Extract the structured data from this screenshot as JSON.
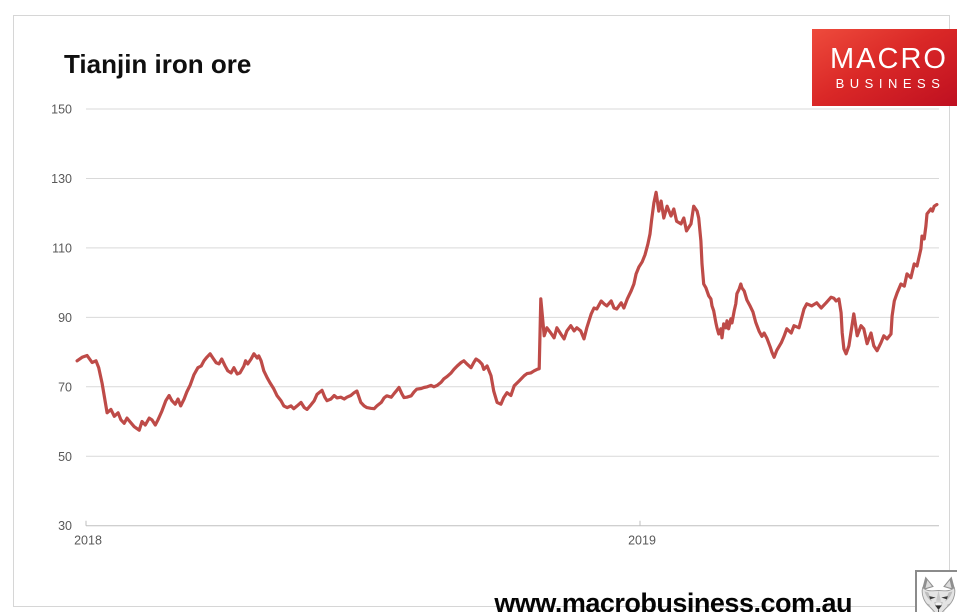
{
  "page": {
    "footer_url": "www.macrobusiness.com.au"
  },
  "logo": {
    "line1": "MACRO",
    "line2": "BUSINESS",
    "bg_top": "#ee4b3c",
    "bg_bottom": "#bd0e20",
    "text_color": "#ffffff"
  },
  "chart_data": {
    "type": "line",
    "title": "Tianjin iron ore",
    "xlabel": "",
    "ylabel": "",
    "grid": true,
    "legend": "none",
    "line_color": "#be4b48",
    "grid_color": "#d9d9d9",
    "axis_color": "#bfbfbf",
    "label_color": "#595959",
    "ylim": [
      30,
      150
    ],
    "y_ticks": [
      150,
      130,
      110,
      90,
      70,
      50,
      30
    ],
    "x_ticks": [
      {
        "label": "2018",
        "value": 2018
      },
      {
        "label": "2019",
        "value": 2019
      }
    ],
    "xlim": [
      2017.983,
      2019.54
    ],
    "points": [
      [
        2017.984,
        77.5
      ],
      [
        2017.993,
        78.5
      ],
      [
        2018.002,
        79
      ],
      [
        2018.011,
        77
      ],
      [
        2018.018,
        77.5
      ],
      [
        2018.023,
        75.5
      ],
      [
        2018.029,
        71
      ],
      [
        2018.038,
        62.5
      ],
      [
        2018.045,
        63.5
      ],
      [
        2018.051,
        61.5
      ],
      [
        2018.058,
        62.5
      ],
      [
        2018.063,
        60.5
      ],
      [
        2018.069,
        59.5
      ],
      [
        2018.074,
        61
      ],
      [
        2018.079,
        60
      ],
      [
        2018.087,
        58.5
      ],
      [
        2018.096,
        57.5
      ],
      [
        2018.101,
        60
      ],
      [
        2018.107,
        59
      ],
      [
        2018.114,
        61
      ],
      [
        2018.119,
        60.5
      ],
      [
        2018.125,
        59
      ],
      [
        2018.13,
        60.5
      ],
      [
        2018.137,
        63
      ],
      [
        2018.144,
        66
      ],
      [
        2018.15,
        67.5
      ],
      [
        2018.155,
        66
      ],
      [
        2018.161,
        65
      ],
      [
        2018.166,
        66.5
      ],
      [
        2018.171,
        64.5
      ],
      [
        2018.177,
        66.5
      ],
      [
        2018.182,
        68.5
      ],
      [
        2018.188,
        70.5
      ],
      [
        2018.195,
        73.5
      ],
      [
        2018.202,
        75.5
      ],
      [
        2018.208,
        76
      ],
      [
        2018.213,
        77.5
      ],
      [
        2018.218,
        78.5
      ],
      [
        2018.224,
        79.5
      ],
      [
        2018.229,
        78.3
      ],
      [
        2018.235,
        76.9
      ],
      [
        2018.24,
        76.6
      ],
      [
        2018.245,
        78
      ],
      [
        2018.251,
        76
      ],
      [
        2018.256,
        74.6
      ],
      [
        2018.262,
        74
      ],
      [
        2018.267,
        75.5
      ],
      [
        2018.273,
        73.7
      ],
      [
        2018.278,
        74
      ],
      [
        2018.285,
        76
      ],
      [
        2018.288,
        77.5
      ],
      [
        2018.292,
        76.6
      ],
      [
        2018.298,
        78
      ],
      [
        2018.303,
        79.5
      ],
      [
        2018.309,
        78.3
      ],
      [
        2018.312,
        78.9
      ],
      [
        2018.316,
        77.5
      ],
      [
        2018.321,
        74.6
      ],
      [
        2018.327,
        72.6
      ],
      [
        2018.332,
        71.2
      ],
      [
        2018.339,
        69.4
      ],
      [
        2018.345,
        67.4
      ],
      [
        2018.352,
        66
      ],
      [
        2018.357,
        64.5
      ],
      [
        2018.363,
        64
      ],
      [
        2018.37,
        64.5
      ],
      [
        2018.375,
        63.7
      ],
      [
        2018.381,
        64.5
      ],
      [
        2018.388,
        65.5
      ],
      [
        2018.394,
        64
      ],
      [
        2018.399,
        63.5
      ],
      [
        2018.406,
        64.8
      ],
      [
        2018.412,
        66
      ],
      [
        2018.417,
        67.8
      ],
      [
        2018.426,
        69
      ],
      [
        2018.431,
        67
      ],
      [
        2018.435,
        66
      ],
      [
        2018.442,
        66.5
      ],
      [
        2018.448,
        67.5
      ],
      [
        2018.453,
        66.8
      ],
      [
        2018.46,
        67
      ],
      [
        2018.466,
        66.5
      ],
      [
        2018.471,
        67
      ],
      [
        2018.478,
        67.5
      ],
      [
        2018.484,
        68.3
      ],
      [
        2018.489,
        68.8
      ],
      [
        2018.496,
        65.5
      ],
      [
        2018.502,
        64.5
      ],
      [
        2018.507,
        64
      ],
      [
        2018.514,
        63.8
      ],
      [
        2018.52,
        63.7
      ],
      [
        2018.525,
        64.5
      ],
      [
        2018.533,
        65.5
      ],
      [
        2018.538,
        66.8
      ],
      [
        2018.543,
        67.4
      ],
      [
        2018.551,
        67
      ],
      [
        2018.556,
        68
      ],
      [
        2018.561,
        69
      ],
      [
        2018.565,
        69.8
      ],
      [
        2018.57,
        68
      ],
      [
        2018.574,
        66.9
      ],
      [
        2018.579,
        67
      ],
      [
        2018.587,
        67.4
      ],
      [
        2018.592,
        68.5
      ],
      [
        2018.597,
        69.3
      ],
      [
        2018.605,
        69.5
      ],
      [
        2018.61,
        69.8
      ],
      [
        2018.616,
        70
      ],
      [
        2018.623,
        70.4
      ],
      [
        2018.628,
        70
      ],
      [
        2018.634,
        70.4
      ],
      [
        2018.641,
        71.3
      ],
      [
        2018.646,
        72.3
      ],
      [
        2018.652,
        73
      ],
      [
        2018.659,
        74
      ],
      [
        2018.664,
        75
      ],
      [
        2018.67,
        76
      ],
      [
        2018.677,
        77
      ],
      [
        2018.682,
        77.5
      ],
      [
        2018.688,
        76.5
      ],
      [
        2018.695,
        75.5
      ],
      [
        2018.7,
        77
      ],
      [
        2018.704,
        78
      ],
      [
        2018.709,
        77.5
      ],
      [
        2018.715,
        76.5
      ],
      [
        2018.718,
        75
      ],
      [
        2018.724,
        76
      ],
      [
        2018.731,
        73.2
      ],
      [
        2018.736,
        68.8
      ],
      [
        2018.742,
        65.5
      ],
      [
        2018.749,
        65
      ],
      [
        2018.754,
        66.9
      ],
      [
        2018.76,
        68.3
      ],
      [
        2018.767,
        67.5
      ],
      [
        2018.773,
        70.3
      ],
      [
        2018.782,
        71.7
      ],
      [
        2018.791,
        73.2
      ],
      [
        2018.796,
        73.8
      ],
      [
        2018.803,
        74
      ],
      [
        2018.809,
        74.6
      ],
      [
        2018.814,
        75
      ],
      [
        2018.818,
        75.2
      ],
      [
        2018.821,
        95.3
      ],
      [
        2018.827,
        84.7
      ],
      [
        2018.832,
        87
      ],
      [
        2018.839,
        85.5
      ],
      [
        2018.845,
        84.1
      ],
      [
        2018.85,
        87
      ],
      [
        2018.857,
        85.2
      ],
      [
        2018.863,
        83.8
      ],
      [
        2018.868,
        86.1
      ],
      [
        2018.875,
        87.6
      ],
      [
        2018.881,
        86.1
      ],
      [
        2018.886,
        87
      ],
      [
        2018.893,
        86.1
      ],
      [
        2018.899,
        83.8
      ],
      [
        2018.904,
        87
      ],
      [
        2018.912,
        91
      ],
      [
        2018.917,
        92.7
      ],
      [
        2018.922,
        92.4
      ],
      [
        2018.93,
        94.7
      ],
      [
        2018.935,
        93.9
      ],
      [
        2018.94,
        93.3
      ],
      [
        2018.948,
        94.7
      ],
      [
        2018.953,
        92.7
      ],
      [
        2018.958,
        92.4
      ],
      [
        2018.966,
        94.2
      ],
      [
        2018.971,
        92.7
      ],
      [
        2018.977,
        95.3
      ],
      [
        2018.984,
        97.6
      ],
      [
        2018.989,
        99.6
      ],
      [
        2018.993,
        102.5
      ],
      [
        2018.998,
        104.5
      ],
      [
        2019.004,
        106
      ],
      [
        2019.009,
        108
      ],
      [
        2019.014,
        111
      ],
      [
        2019.018,
        114
      ],
      [
        2019.021,
        118
      ],
      [
        2019.025,
        123
      ],
      [
        2019.029,
        126
      ],
      [
        2019.034,
        120.6
      ],
      [
        2019.038,
        123.5
      ],
      [
        2019.043,
        118.6
      ],
      [
        2019.049,
        122
      ],
      [
        2019.056,
        119.2
      ],
      [
        2019.061,
        121.2
      ],
      [
        2019.066,
        117.7
      ],
      [
        2019.074,
        116.9
      ],
      [
        2019.079,
        118.6
      ],
      [
        2019.084,
        114.9
      ],
      [
        2019.092,
        116.9
      ],
      [
        2019.097,
        122
      ],
      [
        2019.103,
        120.6
      ],
      [
        2019.106,
        118.6
      ],
      [
        2019.11,
        112
      ],
      [
        2019.112,
        105.4
      ],
      [
        2019.115,
        99.6
      ],
      [
        2019.119,
        98.5
      ],
      [
        2019.124,
        96.2
      ],
      [
        2019.128,
        95.3
      ],
      [
        2019.13,
        93.3
      ],
      [
        2019.133,
        91.9
      ],
      [
        2019.137,
        88.4
      ],
      [
        2019.139,
        87
      ],
      [
        2019.142,
        85.2
      ],
      [
        2019.146,
        86.7
      ],
      [
        2019.148,
        84.1
      ],
      [
        2019.151,
        88.1
      ],
      [
        2019.155,
        87
      ],
      [
        2019.157,
        89
      ],
      [
        2019.16,
        86.7
      ],
      [
        2019.164,
        89.6
      ],
      [
        2019.166,
        88.4
      ],
      [
        2019.17,
        91.9
      ],
      [
        2019.173,
        93.9
      ],
      [
        2019.175,
        96.8
      ],
      [
        2019.179,
        98.2
      ],
      [
        2019.182,
        99.6
      ],
      [
        2019.184,
        98.5
      ],
      [
        2019.188,
        97.6
      ],
      [
        2019.193,
        95
      ],
      [
        2019.198,
        93.5
      ],
      [
        2019.204,
        91.5
      ],
      [
        2019.209,
        88.5
      ],
      [
        2019.215,
        86
      ],
      [
        2019.22,
        84.5
      ],
      [
        2019.224,
        85.5
      ],
      [
        2019.229,
        84
      ],
      [
        2019.235,
        81.5
      ],
      [
        2019.238,
        80
      ],
      [
        2019.242,
        78.5
      ],
      [
        2019.247,
        80.5
      ],
      [
        2019.255,
        82.7
      ],
      [
        2019.26,
        84.5
      ],
      [
        2019.265,
        86.7
      ],
      [
        2019.273,
        85.5
      ],
      [
        2019.278,
        87.6
      ],
      [
        2019.287,
        87
      ],
      [
        2019.296,
        92.4
      ],
      [
        2019.301,
        93.9
      ],
      [
        2019.31,
        93.3
      ],
      [
        2019.319,
        94.2
      ],
      [
        2019.327,
        92.7
      ],
      [
        2019.336,
        94.2
      ],
      [
        2019.345,
        95.8
      ],
      [
        2019.35,
        95.5
      ],
      [
        2019.354,
        94.7
      ],
      [
        2019.359,
        95.3
      ],
      [
        2019.363,
        91.3
      ],
      [
        2019.365,
        85.5
      ],
      [
        2019.368,
        80.9
      ],
      [
        2019.372,
        79.5
      ],
      [
        2019.377,
        81.8
      ],
      [
        2019.383,
        88
      ],
      [
        2019.386,
        91
      ],
      [
        2019.392,
        84.7
      ],
      [
        2019.399,
        87.6
      ],
      [
        2019.404,
        86.7
      ],
      [
        2019.41,
        82.4
      ],
      [
        2019.417,
        85.5
      ],
      [
        2019.422,
        81.8
      ],
      [
        2019.428,
        80.4
      ],
      [
        2019.435,
        82.7
      ],
      [
        2019.44,
        84.7
      ],
      [
        2019.446,
        83.8
      ],
      [
        2019.453,
        85.2
      ],
      [
        2019.455,
        90.4
      ],
      [
        2019.459,
        94.7
      ],
      [
        2019.464,
        97
      ],
      [
        2019.471,
        99.6
      ],
      [
        2019.477,
        99
      ],
      [
        2019.482,
        102.5
      ],
      [
        2019.489,
        101.4
      ],
      [
        2019.495,
        105.4
      ],
      [
        2019.5,
        104.8
      ],
      [
        2019.507,
        109.7
      ],
      [
        2019.509,
        113.4
      ],
      [
        2019.513,
        112.6
      ],
      [
        2019.516,
        116.3
      ],
      [
        2019.518,
        119.8
      ],
      [
        2019.525,
        121.2
      ],
      [
        2019.528,
        120.6
      ],
      [
        2019.531,
        122
      ],
      [
        2019.536,
        122.5
      ]
    ]
  }
}
